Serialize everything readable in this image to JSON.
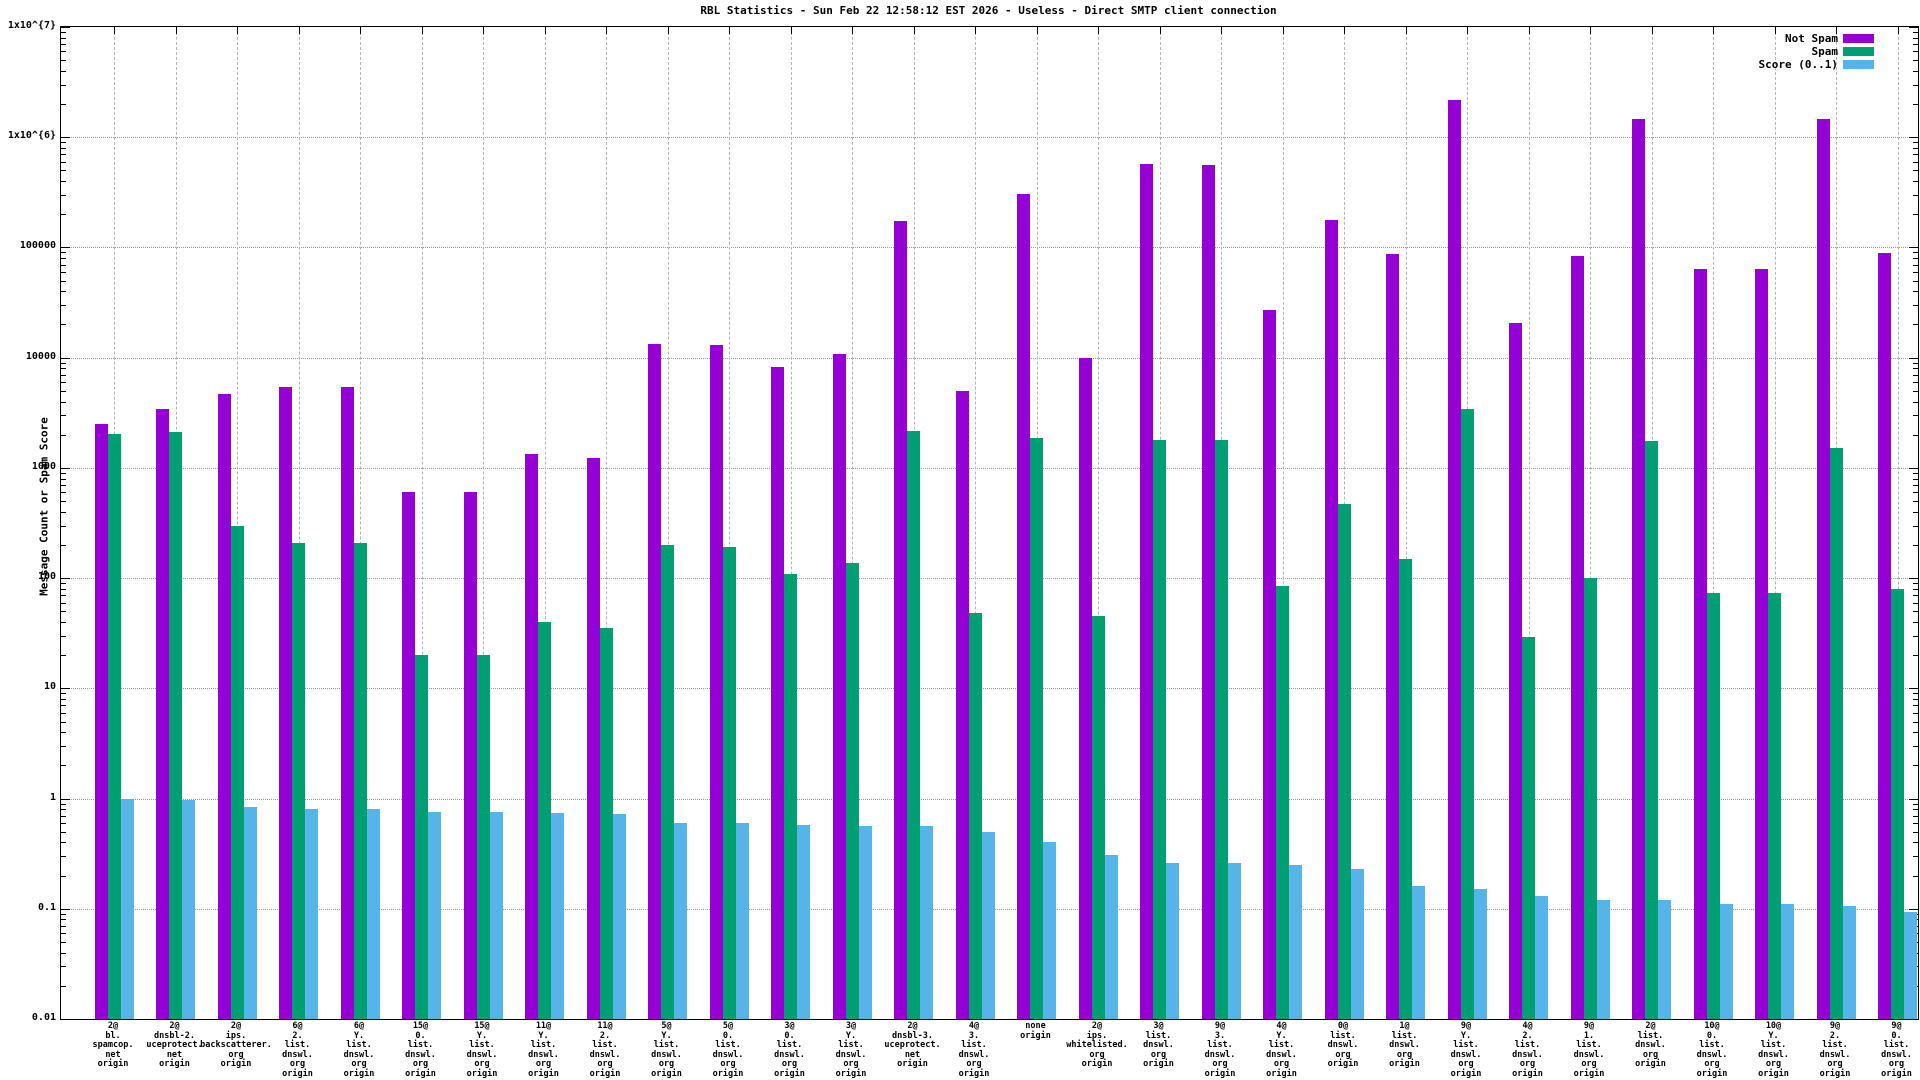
{
  "title": "RBL Statistics - Sun Feb 22 12:58:12 EST 2026 - Useless - Direct SMTP client connection",
  "y_axis": {
    "label": "Message Count or Spam Score",
    "tick_labels": [
      "1x10^{7}",
      "1x10^{6}",
      "100000",
      "10000",
      "1000",
      "100",
      "10",
      "1",
      "0.1",
      "0.01"
    ]
  },
  "legend": {
    "items": [
      {
        "label": "Not Spam",
        "color": "#9400d3"
      },
      {
        "label": "Spam",
        "color": "#009e73"
      },
      {
        "label": "Score (0..1)",
        "color": "#56b4e9"
      }
    ]
  },
  "colors": {
    "not_spam": "#9400d3",
    "spam": "#009e73",
    "score": "#56b4e9",
    "h_grid": "#9a9a9a",
    "v_grid": "#b4b4b4",
    "axis": "#000000"
  },
  "chart_data": {
    "type": "bar",
    "scale": "log",
    "ylim": [
      0.01,
      10000000
    ],
    "grid": true,
    "legend_position": "top-right",
    "title": "RBL Statistics - Sun Feb 22 12:58:12 EST 2026 - Useless - Direct SMTP client connection",
    "xlabel": "",
    "ylabel": "Message Count or Spam Score",
    "categories": [
      [
        "2@",
        "bl.",
        "spamcop.",
        "net",
        "origin"
      ],
      [
        "2@",
        "dnsbl-2.",
        "uceprotect.",
        "net",
        "origin"
      ],
      [
        "2@",
        "ips.",
        "backscatterer.",
        "org",
        "origin"
      ],
      [
        "6@",
        "2.",
        "list.",
        "dnswl.",
        "org",
        "origin"
      ],
      [
        "6@",
        "Y.",
        "list.",
        "dnswl.",
        "org",
        "origin"
      ],
      [
        "15@",
        "0.",
        "list.",
        "dnswl.",
        "org",
        "origin"
      ],
      [
        "15@",
        "Y.",
        "list.",
        "dnswl.",
        "org",
        "origin"
      ],
      [
        "11@",
        "Y.",
        "list.",
        "dnswl.",
        "org",
        "origin"
      ],
      [
        "11@",
        "2.",
        "list.",
        "dnswl.",
        "org",
        "origin"
      ],
      [
        "5@",
        "Y.",
        "list.",
        "dnswl.",
        "org",
        "origin"
      ],
      [
        "5@",
        "0.",
        "list.",
        "dnswl.",
        "org",
        "origin"
      ],
      [
        "3@",
        "0.",
        "list.",
        "dnswl.",
        "org",
        "origin"
      ],
      [
        "3@",
        "Y.",
        "list.",
        "dnswl.",
        "org",
        "origin"
      ],
      [
        "2@",
        "dnsbl-3.",
        "uceprotect.",
        "net",
        "origin"
      ],
      [
        "4@",
        "3.",
        "list.",
        "dnswl.",
        "org",
        "origin"
      ],
      [
        "none",
        "origin"
      ],
      [
        "2@",
        "ips.",
        "whitelisted.",
        "org",
        "origin"
      ],
      [
        "3@",
        "list.",
        "dnswl.",
        "org",
        "origin"
      ],
      [
        "9@",
        "3.",
        "list.",
        "dnswl.",
        "org",
        "origin"
      ],
      [
        "4@",
        "Y.",
        "list.",
        "dnswl.",
        "org",
        "origin"
      ],
      [
        "0@",
        "list.",
        "dnswl.",
        "org",
        "origin"
      ],
      [
        "1@",
        "list.",
        "dnswl.",
        "org",
        "origin"
      ],
      [
        "9@",
        "Y.",
        "list.",
        "dnswl.",
        "org",
        "origin"
      ],
      [
        "4@",
        "2.",
        "list.",
        "dnswl.",
        "org",
        "origin"
      ],
      [
        "9@",
        "1.",
        "list.",
        "dnswl.",
        "org",
        "origin"
      ],
      [
        "2@",
        "list.",
        "dnswl.",
        "org",
        "origin"
      ],
      [
        "10@",
        "0.",
        "list.",
        "dnswl.",
        "org",
        "origin"
      ],
      [
        "10@",
        "Y.",
        "list.",
        "dnswl.",
        "org",
        "origin"
      ],
      [
        "9@",
        "2.",
        "list.",
        "dnswl.",
        "org",
        "origin"
      ],
      [
        "9@",
        "0.",
        "list.",
        "dnswl.",
        "org",
        "origin"
      ]
    ],
    "series": [
      {
        "name": "Not Spam",
        "color": "#9400d3",
        "values": [
          2500,
          3400,
          4700,
          5400,
          5400,
          600,
          600,
          1340,
          1230,
          13400,
          12900,
          8200,
          10700,
          174000,
          5000,
          305000,
          10000,
          570000,
          560000,
          27000,
          176000,
          88000,
          2170000,
          20600,
          83000,
          1470000,
          64000,
          64000,
          1450000,
          89000
        ]
      },
      {
        "name": "Spam",
        "color": "#009e73",
        "values": [
          2050,
          2100,
          295,
          210,
          210,
          20,
          20,
          40,
          35,
          200,
          190,
          110,
          138,
          2150,
          48,
          1860,
          45,
          1800,
          1790,
          84,
          470,
          150,
          3400,
          29,
          100,
          1760,
          74,
          74,
          1500,
          80
        ]
      },
      {
        "name": "Score (0..1)",
        "color": "#56b4e9",
        "values": [
          1.0,
          0.98,
          0.84,
          0.8,
          0.8,
          0.76,
          0.76,
          0.74,
          0.73,
          0.6,
          0.6,
          0.58,
          0.56,
          0.56,
          0.5,
          0.4,
          0.31,
          0.26,
          0.26,
          0.25,
          0.23,
          0.16,
          0.15,
          0.13,
          0.12,
          0.12,
          0.11,
          0.11,
          0.105,
          0.093
        ]
      }
    ]
  }
}
